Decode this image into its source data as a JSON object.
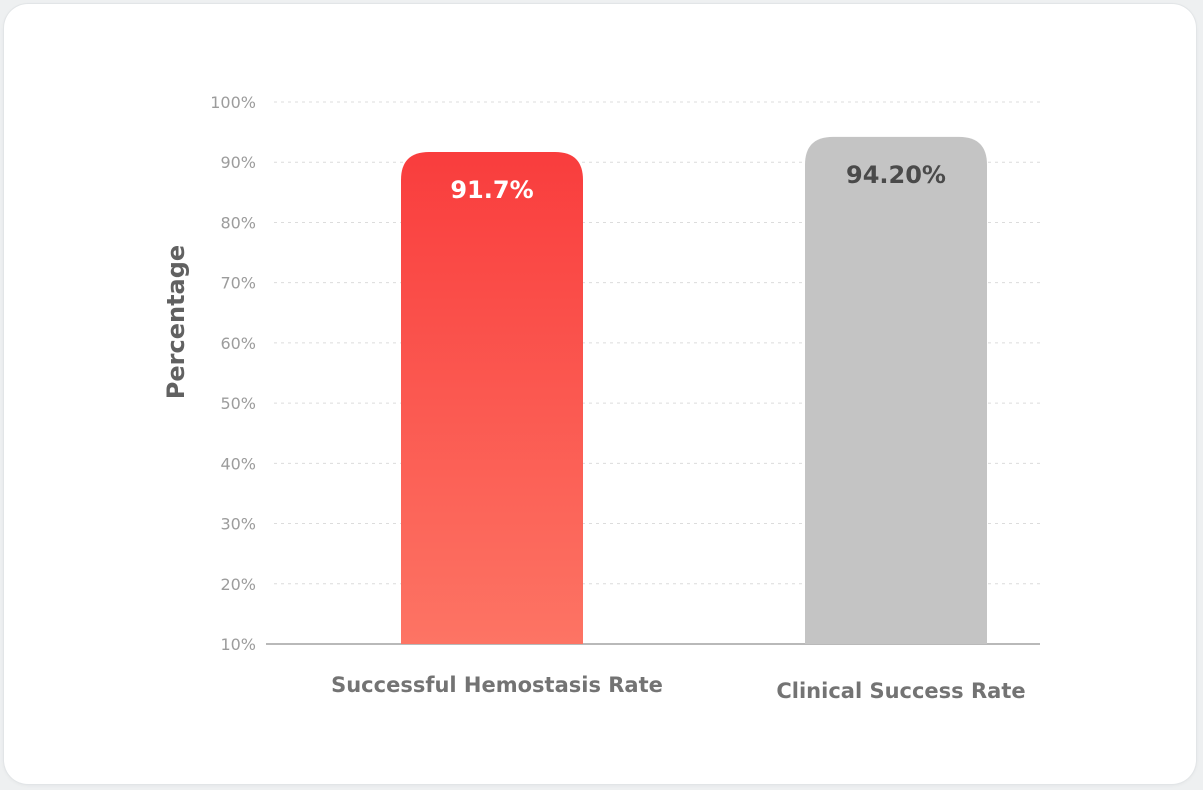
{
  "chart_data": {
    "type": "bar",
    "title": "",
    "xlabel": "",
    "ylabel": "Percentage",
    "ylim": [
      10,
      100
    ],
    "y_ticks": [
      10,
      20,
      30,
      40,
      50,
      60,
      70,
      80,
      90,
      100
    ],
    "y_tick_labels": [
      "10%",
      "20%",
      "30%",
      "40%",
      "50%",
      "60%",
      "70%",
      "80%",
      "90%",
      "100%"
    ],
    "grid": true,
    "categories": [
      "Successful Hemostasis Rate",
      "Clinical Success Rate"
    ],
    "values": [
      91.7,
      94.2
    ],
    "data_labels": [
      "91.7%",
      "94.20%"
    ],
    "colors": [
      "#f84545",
      "#c4c4c4"
    ],
    "label_colors": [
      "#ffffff",
      "#4a4a4a"
    ]
  }
}
